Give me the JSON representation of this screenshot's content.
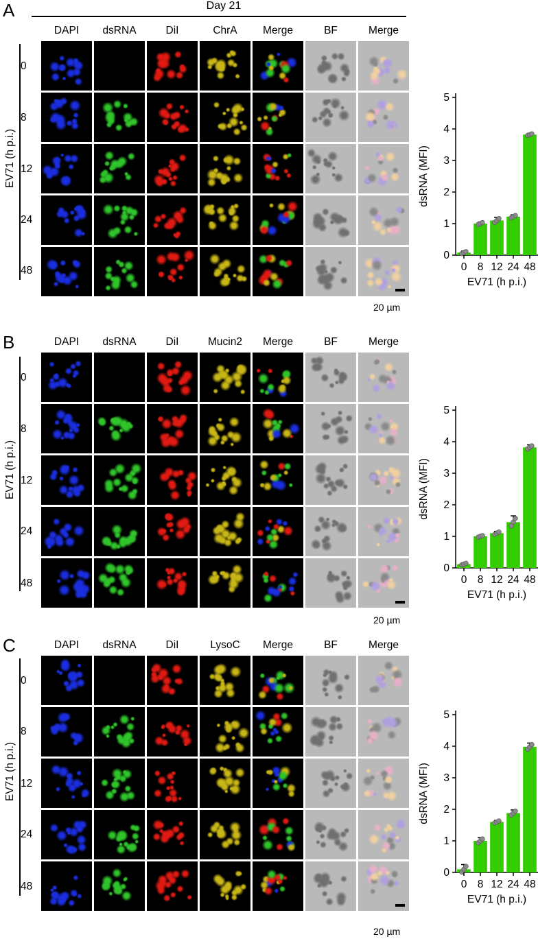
{
  "colors": {
    "DAPI": "#1a2ee0",
    "dsRNA": "#2fc42a",
    "DiI": "#e01a12",
    "marker": "#c8b616",
    "bar_fill": "#33cc00",
    "point": "#8a8a8a"
  },
  "panels": [
    {
      "letter": "A",
      "title": "Day 21",
      "columns": [
        "DAPI",
        "dsRNA",
        "DiI",
        "ChrA",
        "Merge",
        "BF",
        "Merge"
      ],
      "row_axis_label": "EV71 (h p.i.)",
      "rows": [
        "0",
        "8",
        "12",
        "24",
        "48"
      ],
      "scale_bar_label": "20 µm"
    },
    {
      "letter": "B",
      "columns": [
        "DAPI",
        "dsRNA",
        "DiI",
        "Mucin2",
        "Merge",
        "BF",
        "Merge"
      ],
      "row_axis_label": "EV71 (h p.i.)",
      "rows": [
        "0",
        "8",
        "12",
        "24",
        "48"
      ],
      "scale_bar_label": "20 µm"
    },
    {
      "letter": "C",
      "columns": [
        "DAPI",
        "dsRNA",
        "DiI",
        "LysoC",
        "Merge",
        "BF",
        "Merge"
      ],
      "row_axis_label": "EV71 (h p.i.)",
      "rows": [
        "0",
        "8",
        "12",
        "24",
        "48"
      ],
      "scale_bar_label": "20 µm"
    }
  ],
  "chart_data": [
    {
      "type": "bar",
      "categories": [
        "0",
        "8",
        "12",
        "24",
        "48"
      ],
      "values": [
        0.08,
        1.0,
        1.1,
        1.22,
        3.82
      ],
      "errors": [
        0.05,
        0.05,
        0.1,
        0.06,
        0.04
      ],
      "xlabel": "EV71 (h p.i.)",
      "ylabel": "dsRNA (MFI)",
      "ylim": [
        0,
        5
      ],
      "yticks": [
        0,
        1,
        2,
        3,
        4,
        5
      ]
    },
    {
      "type": "bar",
      "categories": [
        "0",
        "8",
        "12",
        "24",
        "48"
      ],
      "values": [
        0.12,
        1.0,
        1.1,
        1.45,
        3.82
      ],
      "errors": [
        0.04,
        0.04,
        0.06,
        0.2,
        0.08
      ],
      "xlabel": "EV71 (h p.i.)",
      "ylabel": "dsRNA (MFI)",
      "ylim": [
        0,
        5
      ],
      "yticks": [
        0,
        1,
        2,
        3,
        4,
        5
      ]
    },
    {
      "type": "bar",
      "categories": [
        "0",
        "8",
        "12",
        "24",
        "48"
      ],
      "values": [
        0.1,
        1.0,
        1.6,
        1.88,
        3.98
      ],
      "errors": [
        0.15,
        0.1,
        0.05,
        0.1,
        0.12
      ],
      "xlabel": "EV71 (h p.i.)",
      "ylabel": "dsRNA (MFI)",
      "ylim": [
        0,
        5
      ],
      "yticks": [
        0,
        1,
        2,
        3,
        4,
        5
      ]
    }
  ]
}
